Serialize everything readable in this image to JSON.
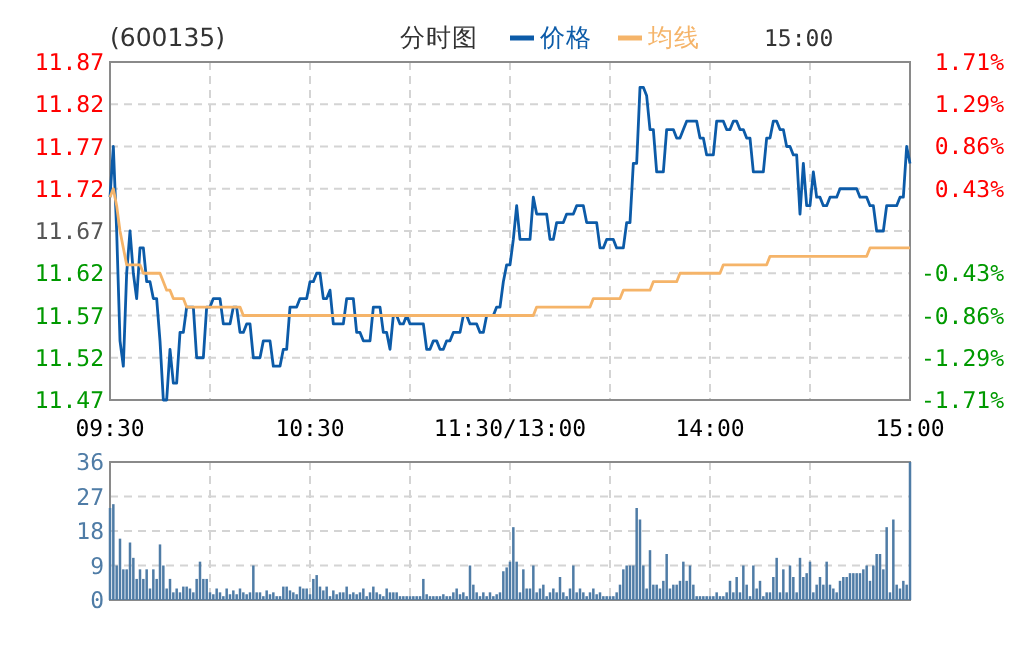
{
  "chart_data": [
    {
      "type": "line",
      "title": "(600135)",
      "subtitle": "分时图",
      "annotations": [
        "15:00"
      ],
      "legend": "top",
      "grid": true,
      "categories": [
        "09:30",
        null,
        null,
        null,
        null,
        null,
        null,
        null,
        null,
        null,
        null,
        null,
        null,
        null,
        null,
        null,
        null,
        null,
        null,
        null,
        null,
        null,
        null,
        null,
        null,
        null,
        null,
        null,
        null,
        null,
        null,
        null,
        null,
        null,
        null,
        null,
        null,
        null,
        null,
        null,
        null,
        null,
        null,
        null,
        null,
        null,
        null,
        null,
        null,
        null,
        null,
        null,
        null,
        null,
        null,
        null,
        null,
        null,
        null,
        null,
        "10:30",
        null,
        null,
        null,
        null,
        null,
        null,
        null,
        null,
        null,
        null,
        null,
        null,
        null,
        null,
        null,
        null,
        null,
        null,
        null,
        null,
        null,
        null,
        null,
        null,
        null,
        null,
        null,
        null,
        null,
        null,
        null,
        null,
        null,
        null,
        null,
        null,
        null,
        null,
        null,
        null,
        null,
        null,
        null,
        null,
        null,
        null,
        null,
        null,
        null,
        null,
        null,
        null,
        null,
        null,
        null,
        null,
        null,
        null,
        null,
        "11:30/13:00",
        null,
        null,
        null,
        null,
        null,
        null,
        null,
        null,
        null,
        null,
        null,
        null,
        null,
        null,
        null,
        null,
        null,
        null,
        null,
        null,
        null,
        null,
        null,
        null,
        null,
        null,
        null,
        null,
        null,
        null,
        null,
        null,
        null,
        null,
        null,
        null,
        null,
        null,
        null,
        null,
        null,
        null,
        null,
        null,
        null,
        null,
        null,
        null,
        null,
        null,
        null,
        null,
        null,
        null,
        null,
        null,
        null,
        null,
        null,
        "14:00",
        null,
        null,
        null,
        null,
        null,
        null,
        null,
        null,
        null,
        null,
        null,
        null,
        null,
        null,
        null,
        null,
        null,
        null,
        null,
        null,
        null,
        null,
        null,
        null,
        null,
        null,
        null,
        null,
        null,
        null,
        null,
        null,
        null,
        null,
        null,
        null,
        null,
        null,
        null,
        null,
        null,
        null,
        null,
        null,
        null,
        null,
        null,
        null,
        null,
        null,
        null,
        null,
        null,
        null,
        null,
        null,
        null,
        null,
        null,
        "15:00"
      ],
      "ylim": [
        11.47,
        11.87
      ],
      "yticks": [
        11.47,
        11.52,
        11.57,
        11.62,
        11.67,
        11.72,
        11.77,
        11.82,
        11.87
      ],
      "y2lim": [
        -1.71,
        1.71
      ],
      "y2ticks": [
        {
          "value": -1.71,
          "label": "-1.71%"
        },
        {
          "value": -1.29,
          "label": "-1.29%"
        },
        {
          "value": -0.86,
          "label": "-0.86%"
        },
        {
          "value": -0.43,
          "label": "-0.43%"
        },
        {
          "value": 0.43,
          "label": "0.43%"
        },
        {
          "value": 0.86,
          "label": "0.86%"
        },
        {
          "value": 1.29,
          "label": "1.29%"
        },
        {
          "value": 1.71,
          "label": "1.71%"
        }
      ],
      "series": [
        {
          "name": "价格",
          "color": "#0c5ba8",
          "values": [
            11.71,
            11.77,
            11.67,
            11.54,
            11.51,
            11.62,
            11.67,
            11.62,
            11.59,
            11.65,
            11.65,
            11.61,
            11.61,
            11.59,
            11.59,
            11.54,
            11.47,
            11.47,
            11.53,
            11.49,
            11.49,
            11.55,
            11.55,
            11.58,
            11.58,
            11.58,
            11.52,
            11.52,
            11.52,
            11.58,
            11.58,
            11.59,
            11.59,
            11.59,
            11.56,
            11.56,
            11.56,
            11.58,
            11.58,
            11.55,
            11.55,
            11.56,
            11.56,
            11.52,
            11.52,
            11.52,
            11.54,
            11.54,
            11.54,
            11.51,
            11.51,
            11.51,
            11.53,
            11.53,
            11.58,
            11.58,
            11.58,
            11.59,
            11.59,
            11.59,
            11.61,
            11.61,
            11.62,
            11.62,
            11.59,
            11.59,
            11.6,
            11.56,
            11.56,
            11.56,
            11.56,
            11.59,
            11.59,
            11.59,
            11.55,
            11.55,
            11.54,
            11.54,
            11.54,
            11.58,
            11.58,
            11.58,
            11.55,
            11.55,
            11.53,
            11.57,
            11.57,
            11.56,
            11.56,
            11.57,
            11.56,
            11.56,
            11.56,
            11.56,
            11.56,
            11.53,
            11.53,
            11.54,
            11.54,
            11.53,
            11.53,
            11.54,
            11.54,
            11.55,
            11.55,
            11.55,
            11.57,
            11.57,
            11.56,
            11.56,
            11.56,
            11.55,
            11.55,
            11.57,
            11.57,
            11.57,
            11.58,
            11.58,
            11.61,
            11.63,
            11.63,
            11.66,
            11.7,
            11.66,
            11.66,
            11.66,
            11.66,
            11.71,
            11.69,
            11.69,
            11.69,
            11.69,
            11.66,
            11.66,
            11.68,
            11.68,
            11.68,
            11.69,
            11.69,
            11.69,
            11.7,
            11.7,
            11.7,
            11.68,
            11.68,
            11.68,
            11.68,
            11.65,
            11.65,
            11.66,
            11.66,
            11.66,
            11.65,
            11.65,
            11.65,
            11.68,
            11.68,
            11.75,
            11.75,
            11.84,
            11.84,
            11.83,
            11.79,
            11.79,
            11.74,
            11.74,
            11.74,
            11.79,
            11.79,
            11.79,
            11.78,
            11.78,
            11.79,
            11.8,
            11.8,
            11.8,
            11.8,
            11.78,
            11.78,
            11.76,
            11.76,
            11.76,
            11.8,
            11.8,
            11.8,
            11.79,
            11.79,
            11.8,
            11.8,
            11.79,
            11.79,
            11.78,
            11.78,
            11.74,
            11.74,
            11.74,
            11.74,
            11.78,
            11.78,
            11.8,
            11.8,
            11.79,
            11.79,
            11.77,
            11.77,
            11.76,
            11.76,
            11.69,
            11.75,
            11.7,
            11.7,
            11.74,
            11.71,
            11.71,
            11.7,
            11.7,
            11.71,
            11.71,
            11.71,
            11.72,
            11.72,
            11.72,
            11.72,
            11.72,
            11.72,
            11.71,
            11.71,
            11.71,
            11.7,
            11.7,
            11.67,
            11.67,
            11.67,
            11.7,
            11.7,
            11.7,
            11.7,
            11.71,
            11.71,
            11.77,
            11.75
          ]
        },
        {
          "name": "均线",
          "color": "#f5b469",
          "values": [
            11.71,
            11.72,
            11.7,
            11.67,
            11.65,
            11.63,
            11.63,
            11.63,
            11.63,
            11.63,
            11.62,
            11.62,
            11.62,
            11.62,
            11.62,
            11.62,
            11.61,
            11.6,
            11.6,
            11.59,
            11.59,
            11.59,
            11.59,
            11.58,
            11.58,
            11.58,
            11.58,
            11.58,
            11.58,
            11.58,
            11.58,
            11.58,
            11.58,
            11.58,
            11.58,
            11.58,
            11.58,
            11.58,
            11.58,
            11.58,
            11.57,
            11.57,
            11.57,
            11.57,
            11.57,
            11.57,
            11.57,
            11.57,
            11.57,
            11.57,
            11.57,
            11.57,
            11.57,
            11.57,
            11.57,
            11.57,
            11.57,
            11.57,
            11.57,
            11.57,
            11.57,
            11.57,
            11.57,
            11.57,
            11.57,
            11.57,
            11.57,
            11.57,
            11.57,
            11.57,
            11.57,
            11.57,
            11.57,
            11.57,
            11.57,
            11.57,
            11.57,
            11.57,
            11.57,
            11.57,
            11.57,
            11.57,
            11.57,
            11.57,
            11.57,
            11.57,
            11.57,
            11.57,
            11.57,
            11.57,
            11.57,
            11.57,
            11.57,
            11.57,
            11.57,
            11.57,
            11.57,
            11.57,
            11.57,
            11.57,
            11.57,
            11.57,
            11.57,
            11.57,
            11.57,
            11.57,
            11.57,
            11.57,
            11.57,
            11.57,
            11.57,
            11.57,
            11.57,
            11.57,
            11.57,
            11.57,
            11.57,
            11.57,
            11.57,
            11.57,
            11.57,
            11.57,
            11.57,
            11.57,
            11.57,
            11.57,
            11.57,
            11.57,
            11.58,
            11.58,
            11.58,
            11.58,
            11.58,
            11.58,
            11.58,
            11.58,
            11.58,
            11.58,
            11.58,
            11.58,
            11.58,
            11.58,
            11.58,
            11.58,
            11.58,
            11.59,
            11.59,
            11.59,
            11.59,
            11.59,
            11.59,
            11.59,
            11.59,
            11.59,
            11.6,
            11.6,
            11.6,
            11.6,
            11.6,
            11.6,
            11.6,
            11.6,
            11.6,
            11.61,
            11.61,
            11.61,
            11.61,
            11.61,
            11.61,
            11.61,
            11.61,
            11.62,
            11.62,
            11.62,
            11.62,
            11.62,
            11.62,
            11.62,
            11.62,
            11.62,
            11.62,
            11.62,
            11.62,
            11.62,
            11.63,
            11.63,
            11.63,
            11.63,
            11.63,
            11.63,
            11.63,
            11.63,
            11.63,
            11.63,
            11.63,
            11.63,
            11.63,
            11.63,
            11.64,
            11.64,
            11.64,
            11.64,
            11.64,
            11.64,
            11.64,
            11.64,
            11.64,
            11.64,
            11.64,
            11.64,
            11.64,
            11.64,
            11.64,
            11.64,
            11.64,
            11.64,
            11.64,
            11.64,
            11.64,
            11.64,
            11.64,
            11.64,
            11.64,
            11.64,
            11.64,
            11.64,
            11.64,
            11.64,
            11.65,
            11.65,
            11.65,
            11.65,
            11.65,
            11.65,
            11.65,
            11.65,
            11.65,
            11.65,
            11.65,
            11.65,
            11.65
          ]
        }
      ]
    },
    {
      "type": "bar",
      "grid": true,
      "tick_labels": "y",
      "color": "#4f7ca6",
      "categories": [
        null,
        null,
        null,
        null,
        null,
        null,
        null,
        null,
        null,
        null,
        null,
        null,
        null,
        null,
        null,
        null,
        null,
        null,
        null,
        null,
        null,
        null,
        null,
        null,
        null,
        null,
        null,
        null,
        null,
        null,
        null,
        null,
        null,
        null,
        null,
        null,
        null,
        null,
        null,
        null,
        null,
        null,
        null,
        null,
        null,
        null,
        null,
        null,
        null,
        null,
        null,
        null,
        null,
        null,
        null,
        null,
        null,
        null,
        null,
        null,
        null,
        null,
        null,
        null,
        null,
        null,
        null,
        null,
        null,
        null,
        null,
        null,
        null,
        null,
        null,
        null,
        null,
        null,
        null,
        null,
        null,
        null,
        null,
        null,
        null,
        null,
        null,
        null,
        null,
        null,
        null,
        null,
        null,
        null,
        null,
        null,
        null,
        null,
        null,
        null,
        null,
        null,
        null,
        null,
        null,
        null,
        null,
        null,
        null,
        null,
        null,
        null,
        null,
        null,
        null,
        null,
        null,
        null,
        null,
        null,
        null,
        null,
        null,
        null,
        null,
        null,
        null,
        null,
        null,
        null,
        null,
        null,
        null,
        null,
        null,
        null,
        null,
        null,
        null,
        null,
        null,
        null,
        null,
        null,
        null,
        null,
        null,
        null,
        null,
        null,
        null,
        null,
        null,
        null,
        null,
        null,
        null,
        null,
        null,
        null,
        null,
        null,
        null,
        null,
        null,
        null,
        null,
        null,
        null,
        null,
        null,
        null,
        null,
        null,
        null,
        null,
        null,
        null,
        null,
        null,
        null,
        null,
        null,
        null,
        null,
        null,
        null,
        null,
        null,
        null,
        null,
        null,
        null,
        null,
        null,
        null,
        null,
        null,
        null,
        null,
        null,
        null,
        null,
        null,
        null,
        null,
        null,
        null,
        null,
        null,
        null,
        null,
        null,
        null,
        null,
        null,
        null,
        null,
        null,
        null,
        null,
        null,
        null,
        null,
        null,
        null,
        null,
        null,
        null,
        null,
        null,
        null,
        null,
        null,
        null,
        null,
        null,
        null,
        null,
        null,
        null
      ],
      "ylim": [
        0,
        36
      ],
      "yticks": [
        0,
        9,
        18,
        27,
        36
      ],
      "values": [
        24,
        25,
        9,
        16,
        8,
        8,
        15,
        11,
        5.5,
        8,
        5.5,
        8,
        3,
        8,
        5.5,
        14.5,
        9,
        3,
        5.5,
        2,
        3,
        2,
        3.5,
        3.5,
        3,
        2,
        5.5,
        10,
        5.5,
        5.5,
        2,
        1.5,
        3,
        2,
        1,
        3,
        1.5,
        2.5,
        1.5,
        3,
        2,
        1.5,
        2,
        9,
        2,
        2,
        1,
        2.5,
        1.5,
        2,
        1,
        1,
        3.5,
        3.5,
        2.5,
        2,
        1.5,
        3.5,
        3,
        3,
        1.5,
        5.5,
        6.5,
        3.5,
        2.5,
        3.5,
        1,
        2.5,
        1.5,
        2,
        2,
        3.5,
        1.5,
        2,
        1.5,
        2,
        3,
        1,
        2,
        3.5,
        2,
        1.5,
        1,
        3,
        2,
        2,
        2,
        1,
        1,
        1,
        1,
        1,
        1,
        1,
        5.5,
        1.5,
        1,
        1,
        1,
        1,
        1.5,
        1,
        1,
        2,
        3,
        1.5,
        2,
        1,
        9,
        4,
        2,
        1,
        2,
        1,
        2,
        1,
        1.5,
        2,
        7.5,
        8.5,
        10,
        19,
        10,
        2,
        8,
        3,
        3,
        9,
        2,
        3,
        4,
        1,
        2,
        3,
        2,
        6,
        2,
        1,
        3,
        9,
        2,
        3,
        2,
        1,
        2,
        3,
        1.5,
        2,
        1,
        1,
        1,
        1,
        2,
        4,
        8,
        9,
        9,
        9,
        24,
        21,
        9,
        3,
        13,
        4,
        4,
        3,
        5,
        12,
        3,
        4,
        4,
        5,
        10,
        5,
        9,
        4,
        1,
        1,
        1,
        1,
        1,
        1,
        2,
        1,
        1,
        2,
        5,
        2,
        6,
        2,
        9,
        4,
        1,
        9,
        3,
        5,
        1,
        2,
        2,
        6,
        11,
        2,
        8,
        2,
        9,
        6,
        2,
        11,
        6,
        7,
        10,
        2,
        4,
        6,
        4,
        10,
        4,
        3,
        2,
        5,
        6,
        6,
        7,
        7,
        7,
        7,
        8,
        9,
        5,
        9,
        12,
        12,
        8,
        19,
        2,
        21,
        4,
        3,
        5,
        4,
        36
      ]
    }
  ]
}
